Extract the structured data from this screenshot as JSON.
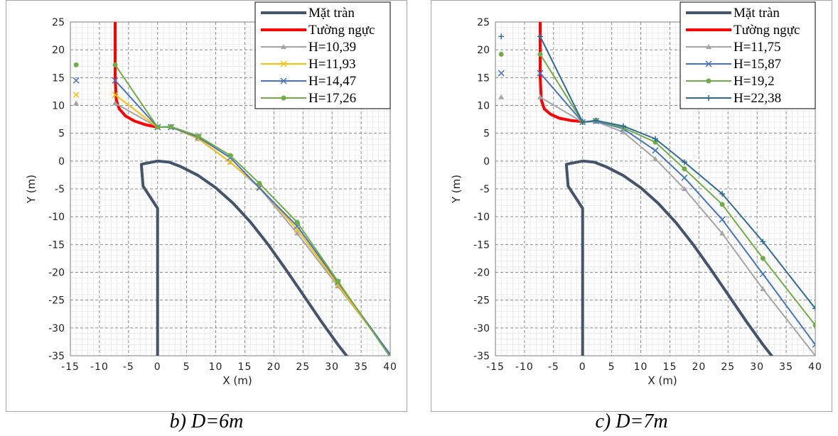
{
  "captions": [
    "b) D=6m",
    "c) D=7m"
  ],
  "colors": {
    "mat_tran": "#44546a",
    "tuong_nguc": "#ff0000",
    "H_1": "#a5a5a5",
    "H_2": "#ffc000",
    "H_3": "#4472c4",
    "H_4": "#70ad47",
    "H_5": "#2e6b9a"
  },
  "chart_data": [
    {
      "type": "line",
      "xlabel": "X (m)",
      "ylabel": "Y (m)",
      "xlim": [
        -15,
        40
      ],
      "ylim": [
        -35,
        25
      ],
      "xticks": [
        -15,
        -10,
        -5,
        0,
        5,
        10,
        15,
        20,
        25,
        30,
        35,
        40
      ],
      "yticks": [
        25,
        20,
        15,
        10,
        5,
        0,
        -5,
        -10,
        -15,
        -20,
        -25,
        -30,
        -35
      ],
      "grid": true,
      "legend_position": "top-right",
      "series": [
        {
          "name": "Mặt tràn",
          "color_key": "mat_tran",
          "marker": "none",
          "width": 4,
          "x": [
            0,
            0,
            -2.5,
            -2.8,
            -2.5,
            0,
            2,
            4,
            7,
            10,
            13,
            16,
            19,
            22,
            25,
            28,
            31,
            34,
            35.5
          ],
          "y": [
            -35,
            -8.5,
            -4.5,
            -0.6,
            -0.5,
            0,
            -0.2,
            -1,
            -2.6,
            -4.8,
            -7.6,
            -11,
            -15,
            -19.4,
            -24,
            -28.6,
            -33,
            -37,
            -38.8
          ]
        },
        {
          "name": "Tường ngực",
          "color_key": "tuong_nguc",
          "marker": "none",
          "width": 4,
          "x": [
            -7.3,
            -7.3,
            -7.3,
            -7.1,
            -6.6,
            -5.5,
            -4,
            -2,
            0
          ],
          "y": [
            25,
            20,
            15,
            11,
            9.4,
            8.1,
            7.2,
            6.5,
            6.1
          ]
        },
        {
          "name": "H=10,39",
          "color_key": "H_1",
          "marker": "triangle",
          "width": 2,
          "x": [
            -14,
            -7.3,
            0,
            2.3,
            7,
            12.5,
            17.5,
            24,
            31
          ],
          "y": [
            10.4,
            10.4,
            6.1,
            6.1,
            4,
            -0.2,
            -4.8,
            -13,
            -22.5
          ],
          "marker_x": [
            -14,
            -7.3,
            0,
            2.3,
            7,
            12.5,
            17.5,
            24,
            31
          ]
        },
        {
          "name": "H=11,93",
          "color_key": "H_2",
          "marker": "x",
          "width": 2,
          "x": [
            -14,
            -7.3,
            0,
            2.3,
            7,
            12.5,
            17.5,
            24,
            31
          ],
          "y": [
            11.9,
            11.9,
            6.1,
            6.1,
            4.1,
            -0.2,
            -4.6,
            -12.3,
            -22.2
          ]
        },
        {
          "name": "H=14,47",
          "color_key": "H_3",
          "marker": "x",
          "width": 2,
          "x": [
            -14,
            -7.3,
            0,
            2.3,
            7,
            12.5,
            17.5,
            24,
            31
          ],
          "y": [
            14.5,
            14.5,
            6.1,
            6.1,
            4.3,
            0.6,
            -4.8,
            -11.7,
            -21.8
          ]
        },
        {
          "name": "H=17,26",
          "color_key": "H_4",
          "marker": "circle",
          "width": 2,
          "x": [
            -14,
            -7.3,
            0,
            2.3,
            7,
            12.5,
            17.5,
            24,
            31
          ],
          "y": [
            17.3,
            17.3,
            6.1,
            6.2,
            4.5,
            1,
            -4,
            -11,
            -21.6
          ]
        }
      ],
      "trajectory_end": {
        "x": 40,
        "y": -34.5
      }
    },
    {
      "type": "line",
      "xlabel": "X (m)",
      "ylabel": "Y (m)",
      "xlim": [
        -15,
        40
      ],
      "ylim": [
        -35,
        25
      ],
      "xticks": [
        -15,
        -10,
        -5,
        0,
        5,
        10,
        15,
        20,
        25,
        30,
        35,
        40
      ],
      "yticks": [
        25,
        20,
        15,
        10,
        5,
        0,
        -5,
        -10,
        -15,
        -20,
        -25,
        -30,
        -35
      ],
      "grid": true,
      "legend_position": "top-right",
      "series": [
        {
          "name": "Mặt tràn",
          "color_key": "mat_tran",
          "marker": "none",
          "width": 4,
          "x": [
            0,
            0,
            -2.5,
            -2.8,
            -2.5,
            0,
            2,
            4,
            7,
            10,
            13,
            16,
            19,
            22,
            25,
            28,
            31,
            34,
            35.5
          ],
          "y": [
            -35,
            -8.5,
            -4.5,
            -0.6,
            -0.5,
            0,
            -0.2,
            -1,
            -2.6,
            -4.8,
            -7.6,
            -11,
            -15,
            -19.4,
            -24,
            -28.6,
            -33,
            -37,
            -38.8
          ]
        },
        {
          "name": "Tường ngực",
          "color_key": "tuong_nguc",
          "marker": "none",
          "width": 4,
          "x": [
            -7.3,
            -7.3,
            -7.3,
            -7.1,
            -6.6,
            -5.5,
            -4,
            -2,
            0
          ],
          "y": [
            25,
            20,
            15,
            11,
            9.4,
            8.4,
            7.7,
            7.3,
            7.1
          ]
        },
        {
          "name": "H=11,75",
          "color_key": "H_1",
          "marker": "triangle",
          "width": 2,
          "x": [
            -14,
            -7.3,
            0,
            2.3,
            7,
            12.5,
            17.5,
            24,
            31,
            40
          ],
          "y": [
            11.5,
            11.5,
            7,
            7.1,
            5.2,
            0.4,
            -5,
            -13,
            -23,
            -35
          ]
        },
        {
          "name": "H=15,87",
          "color_key": "H_3",
          "marker": "x",
          "width": 2,
          "x": [
            -14,
            -7.3,
            0,
            2.3,
            7,
            12.5,
            17.5,
            24,
            31,
            40
          ],
          "y": [
            15.8,
            15.8,
            7,
            7.2,
            5.8,
            1.9,
            -3,
            -10.5,
            -20.3,
            -33
          ]
        },
        {
          "name": "H=19,2",
          "color_key": "H_4",
          "marker": "circle",
          "width": 2,
          "x": [
            -14,
            -7.3,
            0,
            2.3,
            7,
            12.5,
            17.5,
            24,
            31,
            40
          ],
          "y": [
            19.2,
            19.2,
            7,
            7.3,
            6,
            3.4,
            -1.4,
            -7.8,
            -17.5,
            -29.5
          ]
        },
        {
          "name": "H=22,38",
          "color_key": "H_5",
          "marker": "plus",
          "width": 2,
          "x": [
            -14,
            -7.3,
            0,
            2.3,
            7,
            12.5,
            17.5,
            24,
            31,
            40
          ],
          "y": [
            22.4,
            22.4,
            7,
            7.3,
            6.3,
            4,
            -0.2,
            -5.9,
            -14.5,
            -26.5
          ]
        }
      ]
    }
  ]
}
